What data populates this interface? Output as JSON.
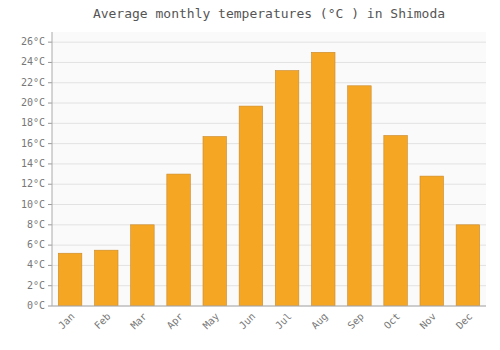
{
  "chart_data": {
    "type": "bar",
    "title": "Average monthly temperatures (°C ) in Shimoda",
    "categories": [
      "Jan",
      "Feb",
      "Mar",
      "Apr",
      "May",
      "Jun",
      "Jul",
      "Aug",
      "Sep",
      "Oct",
      "Nov",
      "Dec"
    ],
    "values": [
      5.2,
      5.5,
      8.0,
      13.0,
      16.7,
      19.7,
      23.2,
      25.0,
      21.7,
      16.8,
      12.8,
      8.0
    ],
    "color": "#F5A623",
    "ylim": [
      0,
      27
    ],
    "yticks": [
      {
        "value": 0,
        "label": "0°C"
      },
      {
        "value": 2,
        "label": "2°C"
      },
      {
        "value": 4,
        "label": "4°C"
      },
      {
        "value": 6,
        "label": "6°C"
      },
      {
        "value": 8,
        "label": "8°C"
      },
      {
        "value": 10,
        "label": "10°C"
      },
      {
        "value": 12,
        "label": "12°C"
      },
      {
        "value": 14,
        "label": "14°C"
      },
      {
        "value": 16,
        "label": "16°C"
      },
      {
        "value": 18,
        "label": "18°C"
      },
      {
        "value": 20,
        "label": "20°C"
      },
      {
        "value": 22,
        "label": "22°C"
      },
      {
        "value": 24,
        "label": "24°C"
      },
      {
        "value": 26,
        "label": "26°C"
      }
    ],
    "grid": true
  }
}
